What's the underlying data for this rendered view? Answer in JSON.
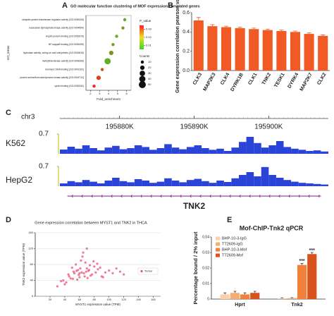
{
  "chart_data": [
    {
      "type": "dot",
      "panel": "A",
      "title": "GO molecular function clustering of MOF expression correlated genes",
      "categories": [
        "ubiquitin-protein transferase regulator activity (GO:0055106)",
        "nucleoside diphosphate kinase activity (GO:0004550)",
        "Hsp90 protein binding (GO:0051879)",
        "NF-kappaB binding (GO:0051059)",
        "hydrolase activity, acting on acid anhydrides (GO:0016818)",
        "methyltransferase activity (GO:0008168)",
        "telomeric DNA binding (GO:0042162)",
        "protein serine/threonine/tyrosine kinase activity (GO:0004712)",
        "cyclin binding (GO:0030332)"
      ],
      "values": [
        5.8,
        5.6,
        4.9,
        4.5,
        4.3,
        3.9,
        3.3,
        2.9,
        2.4
      ],
      "counts": [
        10,
        10,
        10,
        10,
        20,
        40,
        10,
        20,
        10
      ],
      "pvalues": [
        0.012,
        0.014,
        0.01,
        0.013,
        0.016,
        0.011,
        0.025,
        0.03,
        0.033
      ],
      "xlim": [
        1.5,
        6.5
      ],
      "xticks": [
        2,
        3,
        4,
        5,
        6
      ],
      "xlabel": "Fold_enrichment",
      "ylabel": "GO_terms",
      "p_title": "P_value",
      "p_ticks": [
        0.03,
        0.02,
        0.01
      ],
      "plim": [
        0.005,
        0.035
      ],
      "color_range": [
        "#39d22a",
        "#ff2020"
      ],
      "count_title": "Counts",
      "count_ticks": [
        10,
        20,
        30,
        40,
        50
      ]
    },
    {
      "type": "bar",
      "panel": "B",
      "ylabel": "Gene expression correlation pearson value",
      "categories": [
        "CLK3",
        "MAP2K3",
        "CLK4",
        "DYRK1B",
        "CLK1",
        "TNK2",
        "TESK1",
        "DYRK4",
        "MAP2K7",
        "CLK2"
      ],
      "values": [
        0.52,
        0.46,
        0.45,
        0.44,
        0.43,
        0.42,
        0.41,
        0.4,
        0.38,
        0.36
      ],
      "errors": [
        0.03,
        0.015,
        0.01,
        0.01,
        0.01,
        0.01,
        0.01,
        0.01,
        0.01,
        0.01
      ],
      "color": "#f15a24",
      "ylim": [
        0,
        0.6
      ],
      "yticks": [
        {
          "value": 0,
          "label": "0.0"
        },
        0.2,
        0.4,
        0.6
      ]
    },
    {
      "type": "track",
      "panel": "C",
      "chrom": "chr3",
      "xlim": [
        195872,
        195908
      ],
      "xticks": [
        {
          "value": 195880,
          "label": "195880K"
        },
        {
          "value": 195890,
          "label": "195890K"
        },
        {
          "value": 195900,
          "label": "195900K"
        }
      ],
      "x": [
        195872,
        195873,
        195874,
        195875,
        195876,
        195877,
        195878,
        195879,
        195880,
        195881,
        195882,
        195883,
        195884,
        195885,
        195886,
        195887,
        195888,
        195889,
        195890,
        195891,
        195892,
        195893,
        195894,
        195895,
        195896,
        195897,
        195898,
        195899,
        195900,
        195901,
        195902,
        195903,
        195904,
        195905,
        195906,
        195907
      ],
      "color": "#2a44d8",
      "series": [
        {
          "name": "K562",
          "ylim": [
            0,
            0.7
          ],
          "yticks": [
            0.7
          ],
          "values": [
            0.15,
            0.25,
            0.18,
            0.3,
            0.2,
            0.12,
            0.22,
            0.28,
            0.16,
            0.2,
            0.3,
            0.24,
            0.14,
            0.2,
            0.34,
            0.22,
            0.16,
            0.24,
            0.3,
            0.2,
            0.14,
            0.18,
            0.1,
            0.22,
            0.42,
            0.6,
            0.38,
            0.22,
            0.3,
            0.45,
            0.24,
            0.18,
            0.14,
            0.1,
            0.12,
            0.08
          ]
        },
        {
          "name": "HepG2",
          "ylim": [
            0,
            0.7
          ],
          "yticks": [
            0.7
          ],
          "values": [
            0.1,
            0.18,
            0.14,
            0.22,
            0.16,
            0.1,
            0.2,
            0.3,
            0.18,
            0.14,
            0.25,
            0.2,
            0.12,
            0.16,
            0.28,
            0.2,
            0.14,
            0.22,
            0.26,
            0.18,
            0.12,
            0.2,
            0.15,
            0.28,
            0.4,
            0.5,
            0.35,
            0.68,
            0.4,
            0.3,
            0.22,
            0.16,
            0.12,
            0.1,
            0.08,
            0.06
          ]
        }
      ],
      "gene": {
        "name": "TNK2",
        "start": 195873,
        "end": 195907
      }
    },
    {
      "type": "scatter",
      "panel": "D",
      "title": "Gene expression correlation between MYST1 and TNK2 in THCA",
      "xlabel": "MYST1 expression value (TPM)",
      "ylabel": "TNK2 expression value (TPM)",
      "legend": "Tumor",
      "color": "#e8507a",
      "x": [
        45,
        52,
        60,
        38,
        70,
        66,
        58,
        75,
        80,
        48,
        55,
        63,
        72,
        85,
        90,
        42,
        50,
        68,
        77,
        62,
        57,
        95,
        100,
        35,
        46,
        53,
        61,
        69,
        74,
        82,
        88,
        64,
        59,
        71,
        105,
        110,
        40,
        56,
        67,
        79,
        30,
        120,
        65,
        73,
        51,
        84,
        92,
        60,
        70,
        115
      ],
      "y": [
        55,
        62,
        48,
        40,
        70,
        58,
        66,
        52,
        75,
        45,
        80,
        60,
        64,
        68,
        50,
        35,
        72,
        85,
        55,
        90,
        42,
        60,
        65,
        38,
        50,
        58,
        70,
        62,
        78,
        60,
        72,
        100,
        54,
        46,
        58,
        70,
        30,
        64,
        50,
        88,
        25,
        55,
        110,
        66,
        44,
        82,
        48,
        58,
        120,
        62
      ],
      "xlim": [
        0,
        170
      ],
      "xticks": [
        20,
        40,
        60,
        80,
        100,
        120,
        140,
        160
      ],
      "ylim": [
        0,
        160
      ],
      "yticks": [
        0,
        40,
        80,
        120,
        160
      ]
    },
    {
      "type": "gbar",
      "panel": "E",
      "title": "Mof-ChIP-Tnk2 qPCR",
      "ylabel": "Percentage bound / 2% input",
      "categories": [
        "Hprt",
        "Tnk2"
      ],
      "ylim": [
        0,
        0.04
      ],
      "yticks": [
        0,
        0.01,
        0.02,
        0.03,
        0.04
      ],
      "series": [
        {
          "name": "BHP-10-3-IgG",
          "color": "#fbd0a8",
          "values": [
            0.003,
            0.0005
          ],
          "errors": [
            0.001,
            0.0003
          ]
        },
        {
          "name": "TT2609-IgG",
          "color": "#f7ad6e",
          "values": [
            0.004,
            0.0006
          ],
          "errors": [
            0.001,
            0.0003
          ]
        },
        {
          "name": "BHP-10-3-Mof",
          "color": "#f0803a",
          "values": [
            0.003,
            0.022
          ],
          "errors": [
            0.001,
            0.001
          ]
        },
        {
          "name": "TT2609-Mof",
          "color": "#d8531c",
          "values": [
            0.004,
            0.029
          ],
          "errors": [
            0.001,
            0.001
          ]
        }
      ],
      "annotations": [
        {
          "text": "***",
          "series": 2,
          "category": 1
        },
        {
          "text": "***",
          "series": 3,
          "category": 1
        }
      ]
    }
  ]
}
